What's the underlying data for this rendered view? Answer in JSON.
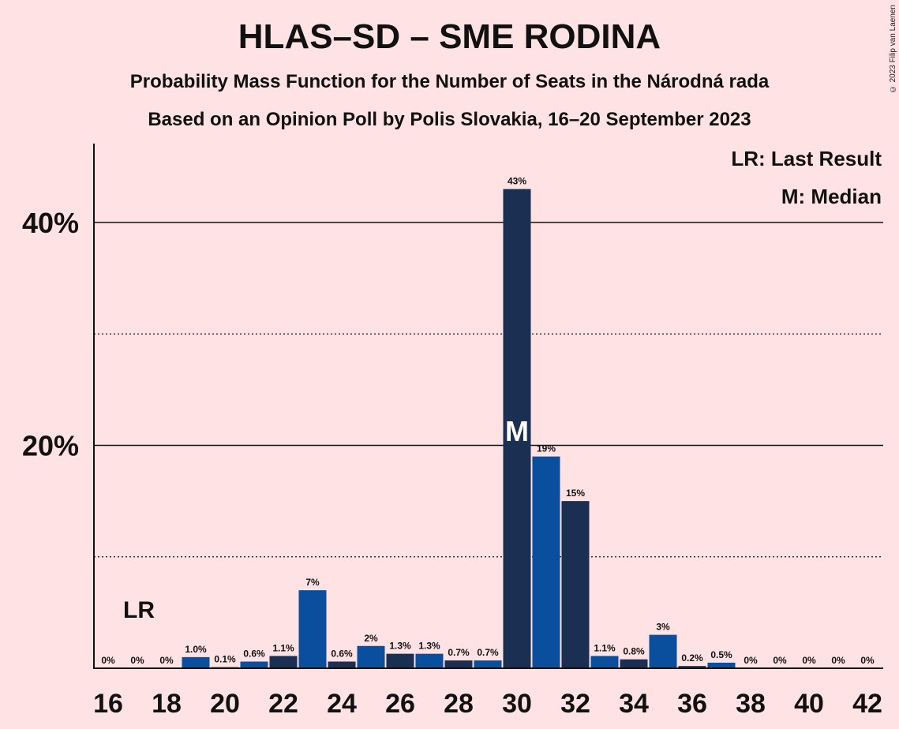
{
  "title": "HLAS–SD – SME RODINA",
  "subtitle1": "Probability Mass Function for the Number of Seats in the Národná rada",
  "subtitle2": "Based on an Opinion Poll by Polis Slovakia, 16–20 September 2023",
  "copyright": "© 2023 Filip van Laenen",
  "legend": {
    "last_result": "LR: Last Result",
    "median": "M: Median"
  },
  "colors": {
    "background": "#ffe2e4",
    "bar_dark": "#1b2f52",
    "bar_blue": "#0a4f9e"
  },
  "chart_data": {
    "type": "bar",
    "x": [
      16,
      17,
      18,
      19,
      20,
      21,
      22,
      23,
      24,
      25,
      26,
      27,
      28,
      29,
      30,
      31,
      32,
      33,
      34,
      35,
      36,
      37,
      38,
      39,
      40,
      41,
      42
    ],
    "values": [
      0,
      0,
      0,
      1.0,
      0.1,
      0.6,
      1.1,
      7,
      0.6,
      2,
      1.3,
      1.3,
      0.7,
      0.7,
      43,
      19,
      15,
      1.1,
      0.8,
      3,
      0.2,
      0.5,
      0,
      0,
      0,
      0,
      0
    ],
    "labels": [
      "0%",
      "0%",
      "0%",
      "1.0%",
      "0.1%",
      "0.6%",
      "1.1%",
      "7%",
      "0.6%",
      "2%",
      "1.3%",
      "1.3%",
      "0.7%",
      "0.7%",
      "43%",
      "19%",
      "15%",
      "1.1%",
      "0.8%",
      "3%",
      "0.2%",
      "0.5%",
      "0%",
      "0%",
      "0%",
      "0%",
      "0%"
    ],
    "ylim": [
      0,
      47
    ],
    "yticks": [
      {
        "value": 20,
        "label": "20%"
      },
      {
        "value": 40,
        "label": "40%"
      }
    ],
    "minor_grid": [
      10,
      30
    ],
    "xticks": [
      16,
      18,
      20,
      22,
      24,
      26,
      28,
      30,
      32,
      34,
      36,
      38,
      40,
      42
    ],
    "last_result": {
      "x": 17,
      "label": "LR"
    },
    "median": {
      "x": 30,
      "label": "M"
    },
    "legend_position": "top-right"
  }
}
